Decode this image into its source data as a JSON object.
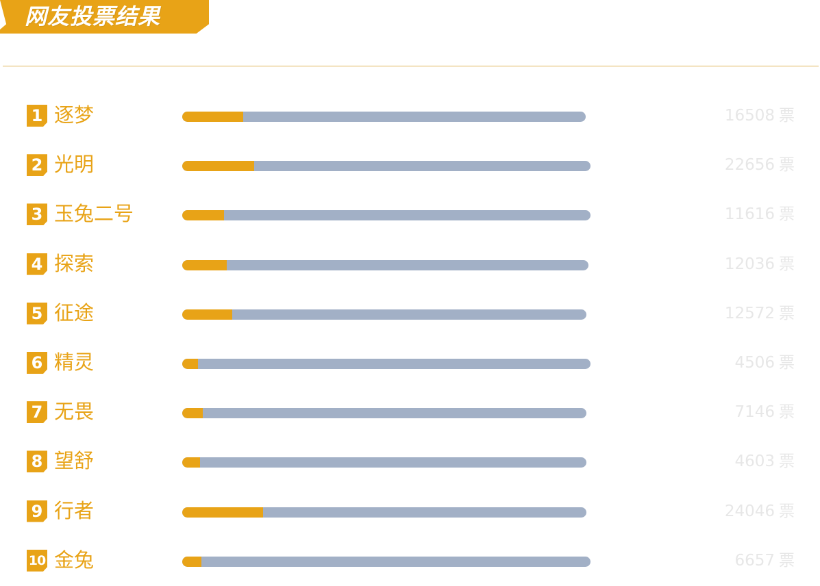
{
  "header": {
    "title": "网友投票结果",
    "accent_color": "#e8a317",
    "track_color": "#a2b0c6",
    "vote_text_color": "#e7e7e7"
  },
  "chart_data": {
    "type": "bar",
    "orientation": "horizontal",
    "title": "网友投票结果",
    "vote_unit": "票",
    "categories": [
      "逐梦",
      "光明",
      "玉兔二号",
      "探索",
      "征途",
      "精灵",
      "无畏",
      "望舒",
      "行者",
      "金兔"
    ],
    "ranks": [
      "1",
      "2",
      "3",
      "4",
      "5",
      "6",
      "7",
      "8",
      "9",
      "10"
    ],
    "values": [
      16508,
      22656,
      11616,
      12036,
      12572,
      4506,
      7146,
      4603,
      24046,
      6657
    ],
    "value_labels": [
      "16508",
      "22656",
      "11616",
      "12036",
      "12572",
      "4506",
      "7146",
      "4603",
      "24046",
      "6657"
    ],
    "fill_fraction": [
      0.151,
      0.177,
      0.102,
      0.109,
      0.124,
      0.038,
      0.051,
      0.044,
      0.2,
      0.047
    ],
    "legend": "none",
    "grid": false
  }
}
